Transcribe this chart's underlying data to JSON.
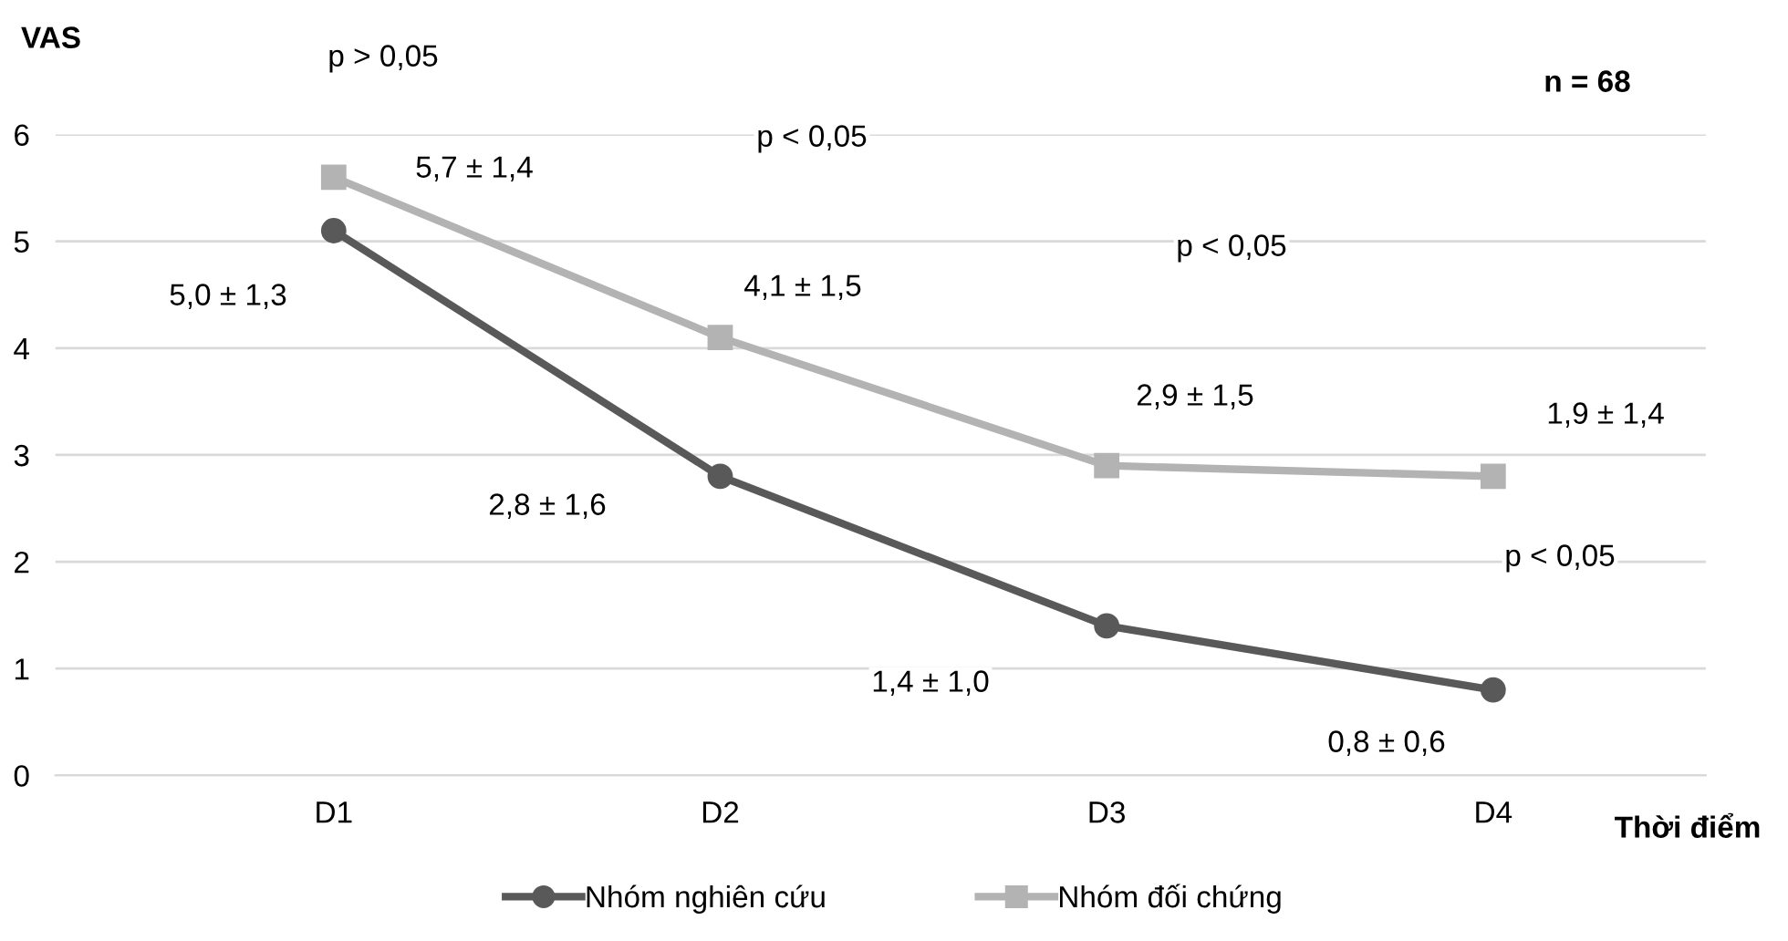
{
  "chart_data": {
    "type": "line",
    "ylabel": "VAS",
    "xlabel": "Thời điểm",
    "categories": [
      "D1",
      "D2",
      "D3",
      "D4"
    ],
    "series": [
      {
        "name": "Nhóm nghiên cứu",
        "color": "#595959",
        "values": [
          5.1,
          2.8,
          1.4,
          0.8
        ],
        "marker": "circle"
      },
      {
        "name": "Nhóm đối chứng",
        "color": "#b3b3b3",
        "values": [
          5.6,
          4.1,
          2.9,
          2.8
        ],
        "marker": "square"
      }
    ],
    "ylim": [
      0,
      6
    ],
    "yticks": [
      0,
      1,
      2,
      3,
      4,
      5,
      6
    ],
    "grid": "y",
    "legend": "bottom",
    "line_style": "solid",
    "annotations": [
      "5,7 ± 1,4",
      "5,0 ± 1,3",
      "4,1 ± 1,5",
      "2,8 ± 1,6",
      "2,9 ± 1,5",
      "1,4 ± 1,0",
      "1,9 ± 1,4",
      "0,8 ± 0,6",
      "p > 0,05",
      "p < 0,05",
      "p < 0,05",
      "p < 0,05",
      "n = 68"
    ]
  }
}
